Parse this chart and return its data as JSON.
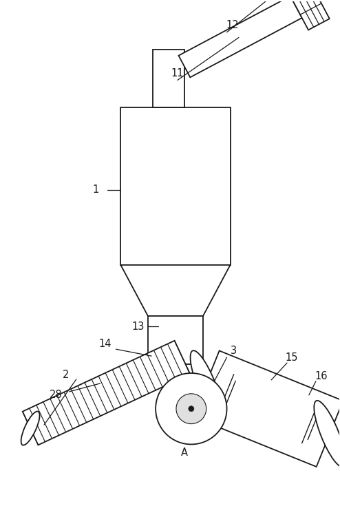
{
  "bg_color": "#ffffff",
  "line_color": "#1a1a1a",
  "line_width": 1.3,
  "fig_width": 4.94,
  "fig_height": 7.35,
  "dpi": 100
}
